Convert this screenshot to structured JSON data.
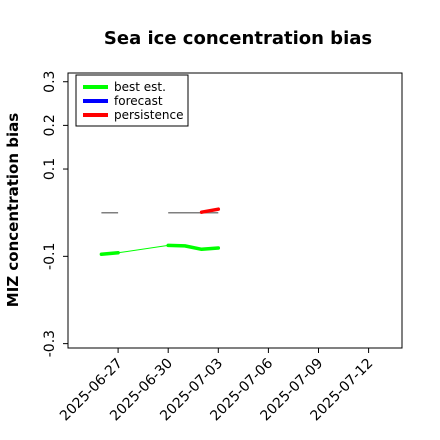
{
  "chart_data": {
    "type": "line",
    "title": "Sea ice concentration bias",
    "xlabel": "",
    "ylabel": "MIZ concentration bias",
    "x_ticks": [
      "2025-06-27",
      "2025-06-30",
      "2025-07-03",
      "2025-07-06",
      "2025-07-09",
      "2025-07-12"
    ],
    "x_tick_highlight": "2025-07-03",
    "x_tick_highlight_color": "#228b22",
    "xlim": [
      "2025-06-24",
      "2025-07-14"
    ],
    "y_ticks": [
      -0.3,
      -0.1,
      0.1,
      0.2,
      0.3
    ],
    "y_tick_labels": [
      "-0.3",
      "-0.1",
      "0.1",
      "0.2",
      "0.3"
    ],
    "ylim": [
      -0.31,
      0.32
    ],
    "grid": false,
    "legend": {
      "placement": "top-left",
      "entries": [
        {
          "label": "best est.",
          "color": "#00ff00"
        },
        {
          "label": "forecast",
          "color": "#0000ff"
        },
        {
          "label": "persistence",
          "color": "#ff0000"
        }
      ]
    },
    "series": [
      {
        "name": "best est.",
        "color": "#00ff00",
        "segments": [
          {
            "x": [
              "2025-06-26",
              "2025-06-27"
            ],
            "y": [
              -0.095,
              -0.092
            ]
          },
          {
            "x": [
              "2025-06-30",
              "2025-07-01",
              "2025-07-02",
              "2025-07-03"
            ],
            "y": [
              -0.075,
              -0.076,
              -0.084,
              -0.081
            ]
          }
        ],
        "connector": {
          "x": [
            "2025-06-27",
            "2025-06-30"
          ],
          "y": [
            -0.092,
            -0.075
          ]
        }
      },
      {
        "name": "persistence",
        "color": "#ff0000",
        "segments": [
          {
            "x": [
              "2025-07-02",
              "2025-07-03"
            ],
            "y": [
              0.001,
              0.008
            ]
          }
        ]
      }
    ],
    "reference_lines": [
      {
        "x": [
          "2025-06-26",
          "2025-06-27"
        ],
        "y": [
          0,
          0
        ],
        "color": "#7f7f7f"
      },
      {
        "x": [
          "2025-06-30",
          "2025-07-03"
        ],
        "y": [
          0,
          0
        ],
        "color": "#7f7f7f"
      }
    ]
  }
}
